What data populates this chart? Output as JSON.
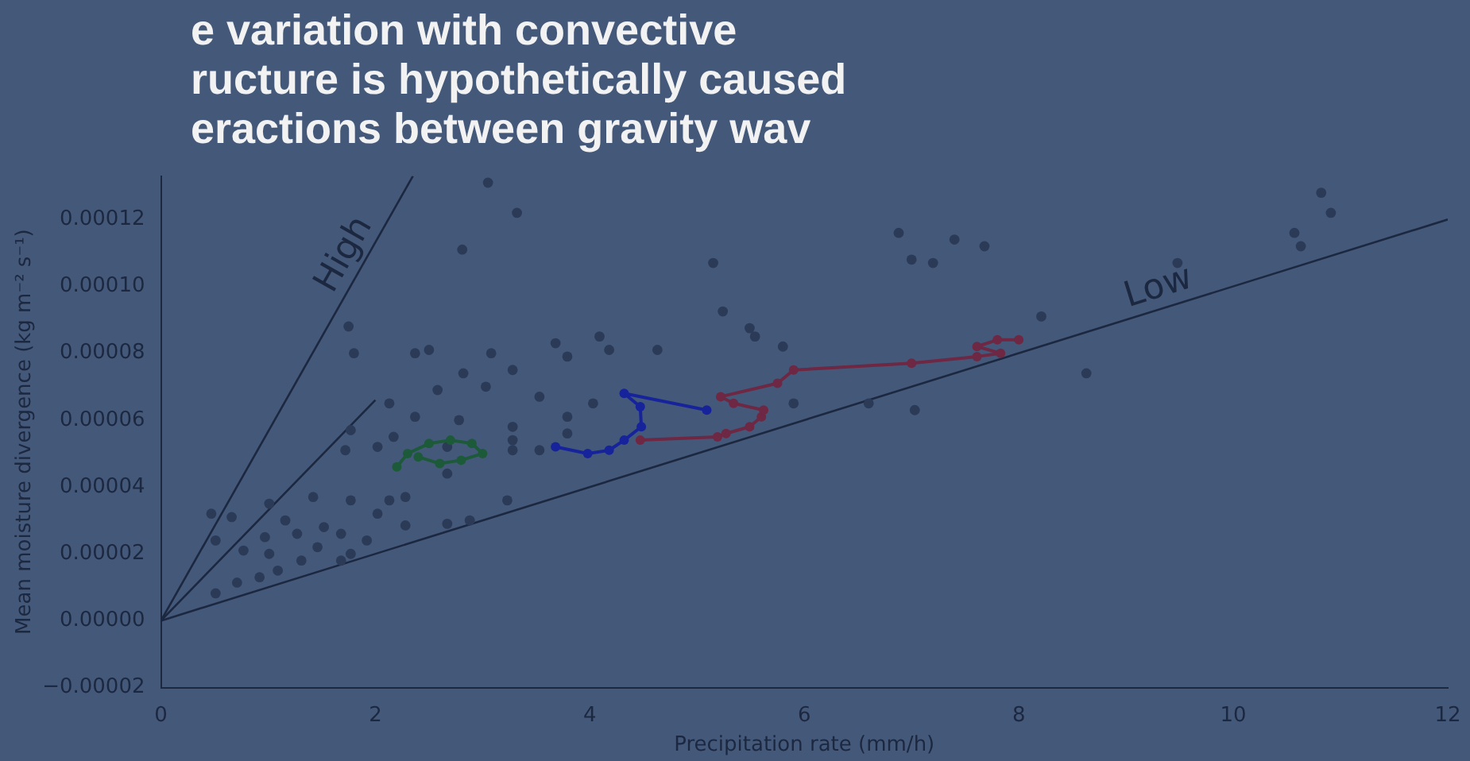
{
  "chart_data": {
    "type": "scatter",
    "xlabel": "Precipitation rate (mm/h)",
    "ylabel": "Mean moisture divergence (kg m⁻² s⁻¹)",
    "annotations": [
      "e variation with convective",
      "ructure is hypothetically caused",
      "eractions between gravity wav"
    ],
    "xlim": [
      0,
      12
    ],
    "ylim": [
      -2e-05,
      0.000133
    ],
    "xticks": [
      0,
      2,
      4,
      6,
      8,
      10,
      12
    ],
    "yticks": [
      {
        "value": -2e-05,
        "label": "−0.00002"
      },
      {
        "value": 0,
        "label": "0.00000"
      },
      {
        "value": 2e-05,
        "label": "0.00002"
      },
      {
        "value": 4e-05,
        "label": "0.00004"
      },
      {
        "value": 6e-05,
        "label": "0.00006"
      },
      {
        "value": 8e-05,
        "label": "0.00008"
      },
      {
        "value": 0.0001,
        "label": "0.00010"
      },
      {
        "value": 0.00012,
        "label": "0.00012"
      }
    ],
    "grid": false,
    "legend": false,
    "marker": "circle",
    "series": [
      {
        "color": "#2b3a57",
        "x": [
          3.05,
          3.32,
          2.81,
          1.75,
          1.8,
          6.88,
          7.4,
          7.68,
          7.0,
          7.2,
          5.15,
          5.24,
          8.21,
          10.82,
          10.91,
          10.57,
          10.63,
          9.48,
          8.63,
          5.49,
          5.54,
          5.8,
          4.63,
          4.09,
          4.18,
          7.03,
          6.6,
          5.9,
          3.68,
          2.37,
          2.5,
          3.08,
          3.79,
          2.82,
          3.28,
          2.58,
          3.03,
          3.53,
          4.03,
          2.13,
          2.37,
          2.78,
          3.28,
          3.79,
          1.77,
          2.17,
          2.67,
          3.28,
          3.79,
          1.72,
          2.02,
          3.28,
          3.53,
          2.67,
          1.42,
          1.77,
          2.13,
          2.28,
          3.23,
          2.02,
          1.01,
          0.66,
          1.16,
          1.52,
          2.28,
          2.67,
          2.88,
          0.51,
          0.97,
          1.27,
          1.68,
          1.92,
          0.77,
          1.01,
          1.46,
          1.77,
          1.31,
          1.09,
          0.92,
          0.71,
          0.51,
          1.68,
          0.47
        ],
        "values": [
          0.000131,
          0.000122,
          0.000111,
          8.8e-05,
          8e-05,
          0.000116,
          0.000114,
          0.000112,
          0.000108,
          0.000107,
          0.000107,
          9.25e-05,
          9.1e-05,
          0.000128,
          0.000122,
          0.000116,
          0.000112,
          0.000107,
          7.4e-05,
          8.75e-05,
          8.5e-05,
          8.2e-05,
          8.1e-05,
          8.5e-05,
          8.1e-05,
          6.3e-05,
          6.5e-05,
          6.5e-05,
          8.3e-05,
          8e-05,
          8.1e-05,
          8e-05,
          7.9e-05,
          7.4e-05,
          7.5e-05,
          6.9e-05,
          7e-05,
          6.7e-05,
          6.5e-05,
          6.5e-05,
          6.1e-05,
          6e-05,
          5.8e-05,
          6.1e-05,
          5.7e-05,
          5.5e-05,
          5.2e-05,
          5.4e-05,
          5.6e-05,
          5.1e-05,
          5.2e-05,
          5.1e-05,
          5.1e-05,
          4.4e-05,
          3.7e-05,
          3.6e-05,
          3.6e-05,
          3.7e-05,
          3.6e-05,
          3.2e-05,
          3.5e-05,
          3.1e-05,
          3e-05,
          2.8e-05,
          2.85e-05,
          2.9e-05,
          3e-05,
          2.4e-05,
          2.5e-05,
          2.6e-05,
          2.6e-05,
          2.4e-05,
          2.1e-05,
          2e-05,
          2.2e-05,
          2e-05,
          1.8e-05,
          1.5e-05,
          1.3e-05,
          1.14e-05,
          8.2e-06,
          1.8e-05,
          3.2e-05
        ]
      },
      {
        "type": "line",
        "color": "#1d5a3a",
        "x": [
          2.2,
          2.3,
          2.5,
          2.7,
          2.9,
          3.0,
          2.8,
          2.6,
          2.4
        ],
        "values": [
          4.6e-05,
          5e-05,
          5.3e-05,
          5.4e-05,
          5.3e-05,
          5e-05,
          4.8e-05,
          4.7e-05,
          4.9e-05
        ]
      },
      {
        "type": "line",
        "color": "#17239a",
        "x": [
          3.68,
          3.98,
          4.18,
          4.32,
          4.48,
          4.47,
          4.32,
          5.09
        ],
        "values": [
          5.2e-05,
          5e-05,
          5.1e-05,
          5.4e-05,
          5.8e-05,
          6.4e-05,
          6.8e-05,
          6.3e-05
        ]
      },
      {
        "type": "line",
        "color": "#6e2844",
        "x": [
          4.47,
          5.19,
          5.27,
          5.49,
          5.6,
          5.62,
          5.34,
          5.22,
          5.75,
          5.9,
          7.0,
          7.61,
          7.83,
          7.61,
          7.8,
          8.0
        ],
        "values": [
          5.4e-05,
          5.5e-05,
          5.6e-05,
          5.8e-05,
          6.1e-05,
          6.3e-05,
          6.5e-05,
          6.7e-05,
          7.1e-05,
          7.5e-05,
          7.7e-05,
          7.9e-05,
          8e-05,
          8.2e-05,
          8.4e-05,
          8.4e-05
        ]
      },
      {
        "type": "line",
        "name": "High",
        "color": "#1c2740",
        "marker": "none",
        "x": [
          0,
          2.35
        ],
        "values": [
          0,
          0.000133
        ]
      },
      {
        "type": "line",
        "color": "#1c2740",
        "marker": "none",
        "x": [
          0,
          2.0
        ],
        "values": [
          0,
          6.6e-05
        ]
      },
      {
        "type": "line",
        "name": "Low",
        "color": "#1c2740",
        "marker": "none",
        "x": [
          0,
          12
        ],
        "values": [
          0,
          0.00012
        ]
      }
    ]
  }
}
